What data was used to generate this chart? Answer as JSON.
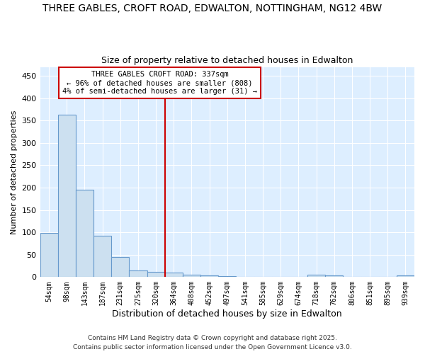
{
  "title1": "THREE GABLES, CROFT ROAD, EDWALTON, NOTTINGHAM, NG12 4BW",
  "title2": "Size of property relative to detached houses in Edwalton",
  "xlabel": "Distribution of detached houses by size in Edwalton",
  "ylabel": "Number of detached properties",
  "categories": [
    "54sqm",
    "98sqm",
    "143sqm",
    "187sqm",
    "231sqm",
    "275sqm",
    "320sqm",
    "364sqm",
    "408sqm",
    "452sqm",
    "497sqm",
    "541sqm",
    "585sqm",
    "629sqm",
    "674sqm",
    "718sqm",
    "762sqm",
    "806sqm",
    "851sqm",
    "895sqm",
    "939sqm"
  ],
  "values": [
    99,
    363,
    195,
    93,
    45,
    14,
    11,
    10,
    6,
    4,
    2,
    1,
    0,
    1,
    0,
    5,
    3,
    0,
    0,
    0,
    3
  ],
  "bar_color": "#cce0f0",
  "bar_edge_color": "#6699cc",
  "vline_x": 6.5,
  "vline_color": "#cc0000",
  "annotation_text": "THREE GABLES CROFT ROAD: 337sqm\n← 96% of detached houses are smaller (808)\n4% of semi-detached houses are larger (31) →",
  "annotation_box_color": "#ffffff",
  "annotation_box_edge": "#cc0000",
  "ylim": [
    0,
    470
  ],
  "yticks": [
    0,
    50,
    100,
    150,
    200,
    250,
    300,
    350,
    400,
    450
  ],
  "footer1": "Contains HM Land Registry data © Crown copyright and database right 2025.",
  "footer2": "Contains public sector information licensed under the Open Government Licence v3.0.",
  "bg_color": "#ffffff",
  "plot_bg_color": "#ddeeff",
  "title1_fontsize": 10,
  "title2_fontsize": 9,
  "xlabel_fontsize": 9,
  "ylabel_fontsize": 8,
  "tick_fontsize": 8,
  "xtick_fontsize": 7,
  "footer_fontsize": 6.5,
  "annotation_fontsize": 7.5
}
